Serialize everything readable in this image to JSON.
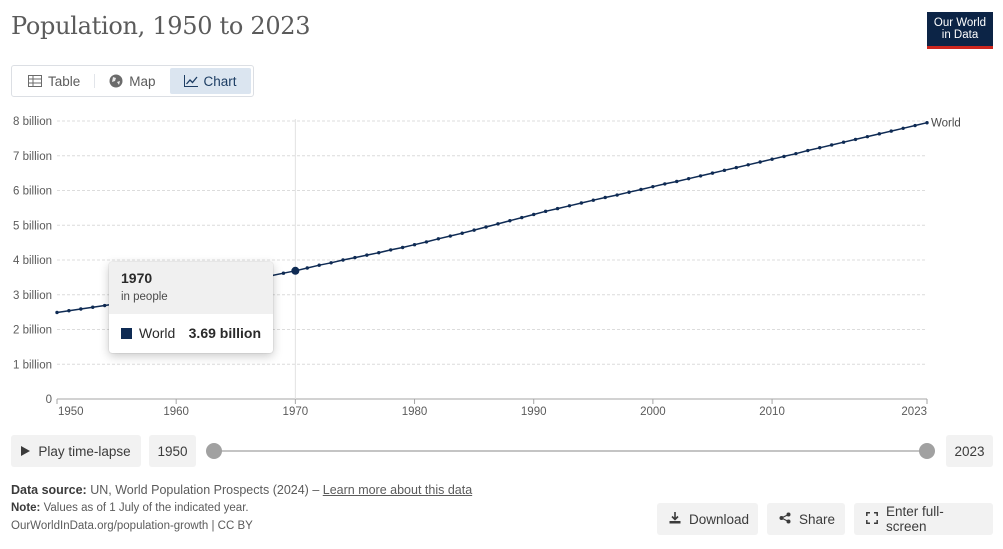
{
  "header": {
    "title": "Population, 1950 to 2023"
  },
  "logo": {
    "line1": "Our World",
    "line2": "in Data"
  },
  "tabs": [
    {
      "label": "Table",
      "icon": "table-icon",
      "active": false
    },
    {
      "label": "Map",
      "icon": "globe-icon",
      "active": false
    },
    {
      "label": "Chart",
      "icon": "line-chart-icon",
      "active": true
    }
  ],
  "chart_data": {
    "type": "line",
    "title": "Population, 1950 to 2023",
    "xlabel": "",
    "ylabel": "",
    "xlim": [
      1950,
      2023
    ],
    "ylim": [
      0,
      8
    ],
    "grid": true,
    "y_ticks": [
      {
        "value": 0,
        "label": "0"
      },
      {
        "value": 1,
        "label": "1 billion"
      },
      {
        "value": 2,
        "label": "2 billion"
      },
      {
        "value": 3,
        "label": "3 billion"
      },
      {
        "value": 4,
        "label": "4 billion"
      },
      {
        "value": 5,
        "label": "5 billion"
      },
      {
        "value": 6,
        "label": "6 billion"
      },
      {
        "value": 7,
        "label": "7 billion"
      },
      {
        "value": 8,
        "label": "8 billion"
      }
    ],
    "x_ticks": [
      1950,
      1960,
      1970,
      1980,
      1990,
      2000,
      2010,
      2023
    ],
    "series": [
      {
        "name": "World",
        "color": "#0f2b54",
        "x": [
          1950,
          1951,
          1952,
          1953,
          1954,
          1955,
          1956,
          1957,
          1958,
          1959,
          1960,
          1961,
          1962,
          1963,
          1964,
          1965,
          1966,
          1967,
          1968,
          1969,
          1970,
          1971,
          1972,
          1973,
          1974,
          1975,
          1976,
          1977,
          1978,
          1979,
          1980,
          1981,
          1982,
          1983,
          1984,
          1985,
          1986,
          1987,
          1988,
          1989,
          1990,
          1991,
          1992,
          1993,
          1994,
          1995,
          1996,
          1997,
          1998,
          1999,
          2000,
          2001,
          2002,
          2003,
          2004,
          2005,
          2006,
          2007,
          2008,
          2009,
          2010,
          2011,
          2012,
          2013,
          2014,
          2015,
          2016,
          2017,
          2018,
          2019,
          2020,
          2021,
          2022,
          2023
        ],
        "values": [
          2.49,
          2.54,
          2.59,
          2.64,
          2.69,
          2.74,
          2.79,
          2.85,
          2.91,
          2.96,
          3.02,
          3.07,
          3.13,
          3.2,
          3.27,
          3.34,
          3.41,
          3.48,
          3.55,
          3.62,
          3.69,
          3.77,
          3.85,
          3.92,
          4.0,
          4.07,
          4.14,
          4.21,
          4.29,
          4.36,
          4.44,
          4.52,
          4.61,
          4.69,
          4.77,
          4.86,
          4.95,
          5.04,
          5.13,
          5.22,
          5.31,
          5.4,
          5.48,
          5.56,
          5.64,
          5.72,
          5.8,
          5.87,
          5.95,
          6.03,
          6.11,
          6.19,
          6.26,
          6.34,
          6.42,
          6.5,
          6.58,
          6.66,
          6.74,
          6.82,
          6.9,
          6.98,
          7.06,
          7.15,
          7.23,
          7.31,
          7.39,
          7.47,
          7.55,
          7.63,
          7.71,
          7.79,
          7.87,
          7.95
        ],
        "end_label": "World"
      }
    ],
    "hover": {
      "year": 1970,
      "value": 3.69
    }
  },
  "tooltip": {
    "year": "1970",
    "unit": "in people",
    "entity": "World",
    "value": "3.69 billion",
    "swatch_color": "#0f2b54"
  },
  "timeline": {
    "play_label": "Play time-lapse",
    "start_label": "1950",
    "end_label": "2023",
    "range": [
      1950,
      2023
    ]
  },
  "footer": {
    "source_label": "Data source:",
    "source_text": "UN, World Population Prospects (2024) –",
    "source_link": "Learn more about this data",
    "note_label": "Note:",
    "note_text": "Values as of 1 July of the indicated year.",
    "url_text": "OurWorldInData.org/population-growth | CC BY"
  },
  "actions": {
    "download": "Download",
    "share": "Share",
    "fullscreen": "Enter full-screen"
  }
}
